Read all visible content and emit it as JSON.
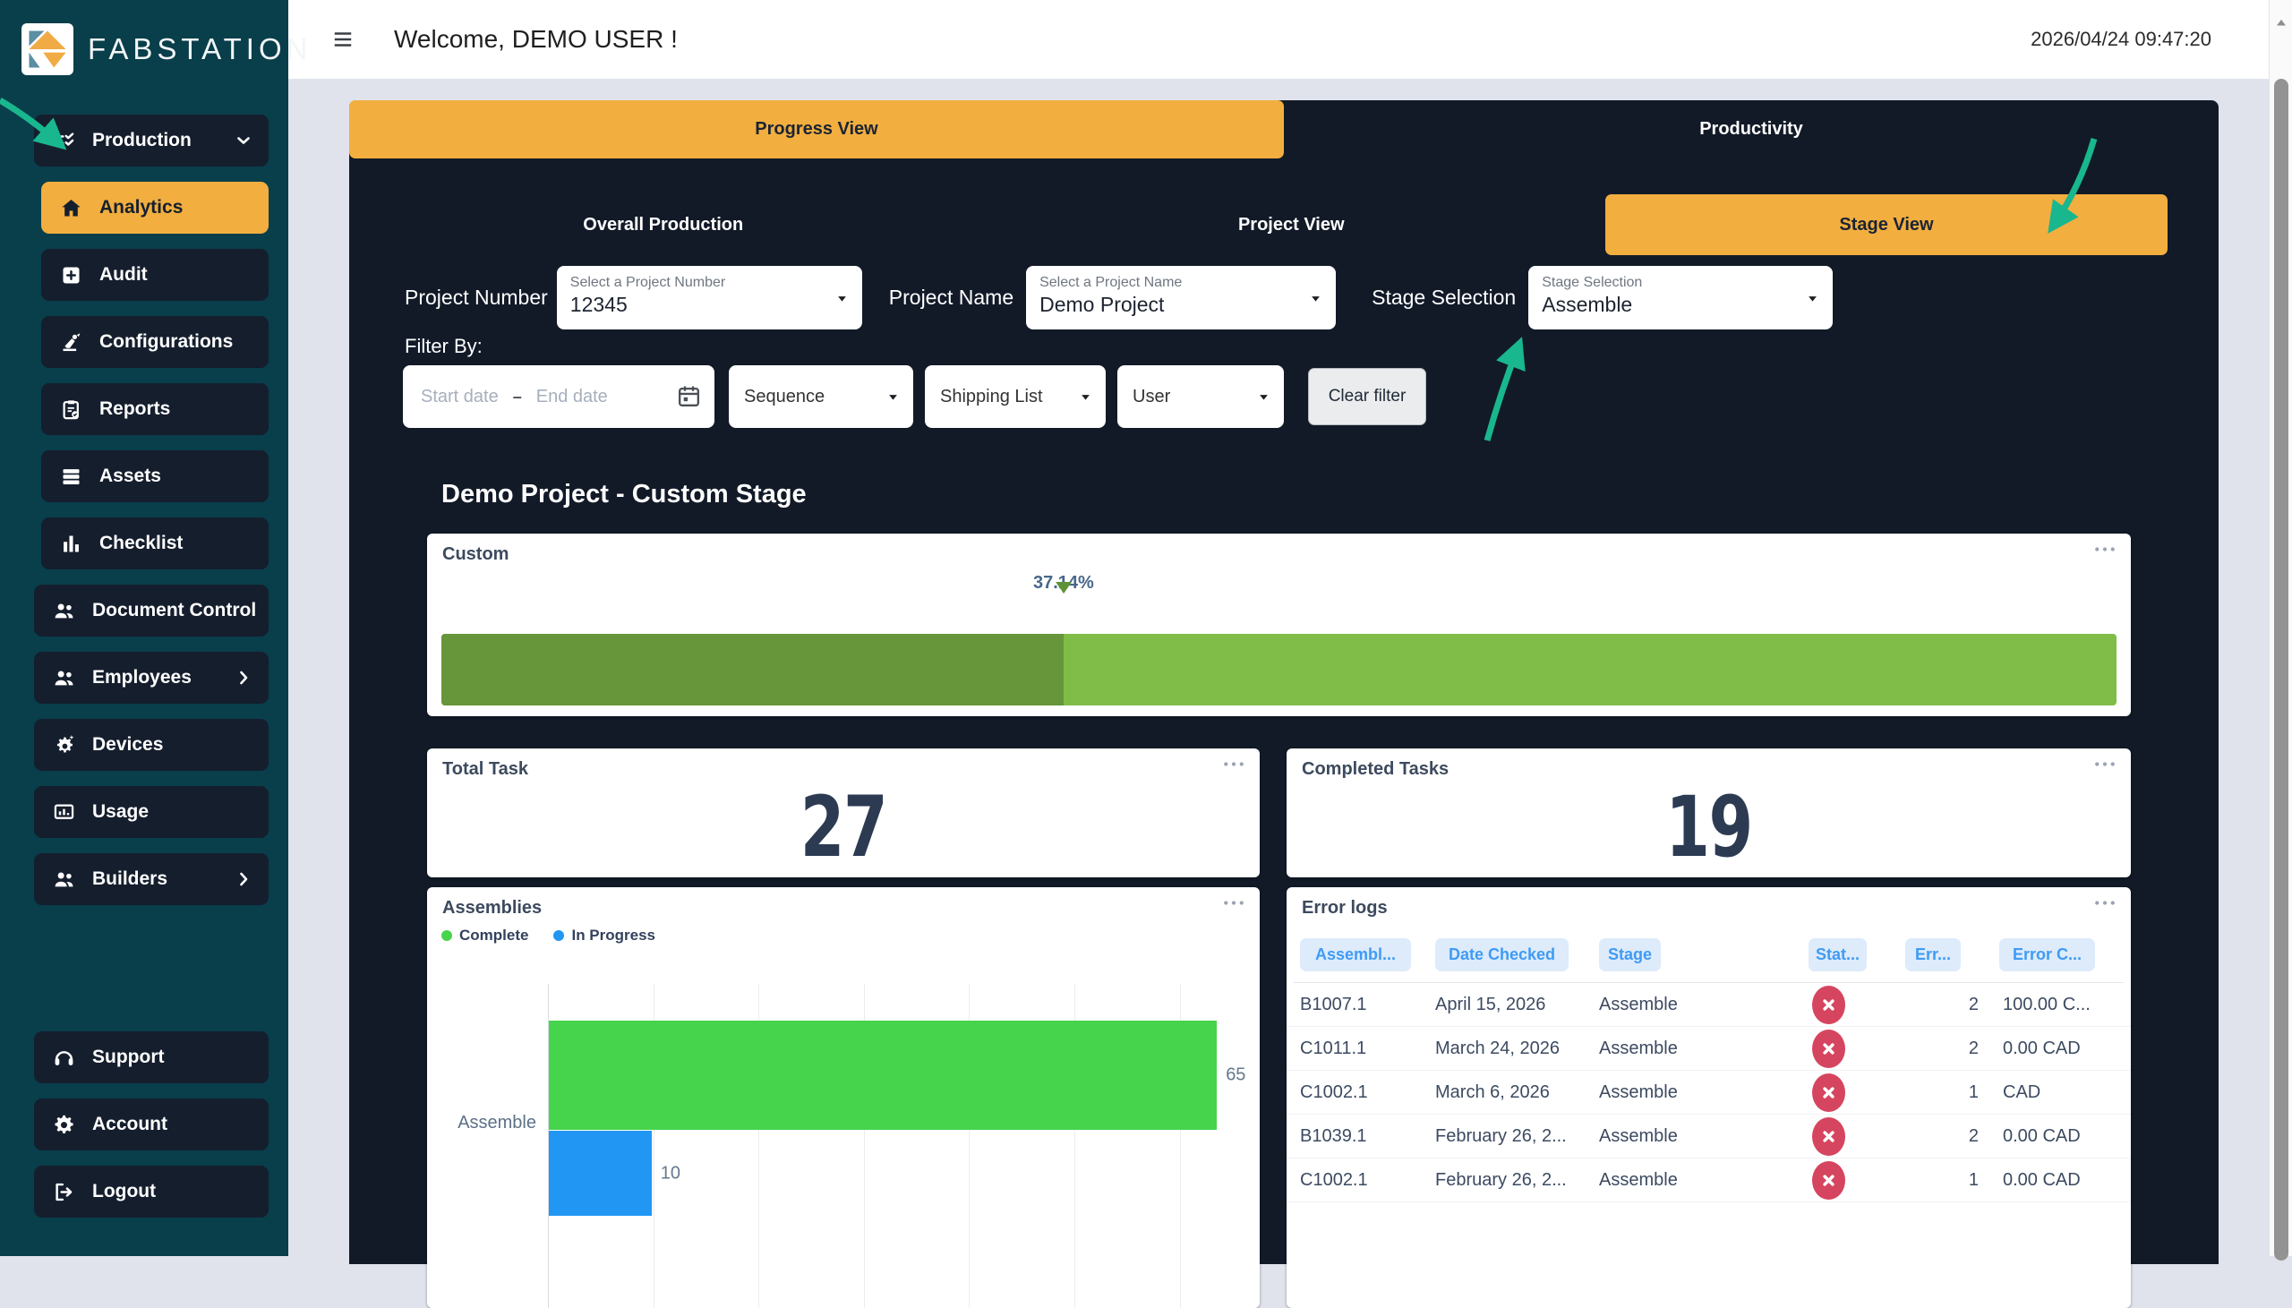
{
  "brand": {
    "name": "FABSTATION",
    "logo_icon": "fabstation-logo-icon"
  },
  "header": {
    "welcome": "Welcome, DEMO USER !",
    "timestamp": "2026/04/24 09:47:20",
    "menu_icon": "hamburger-icon"
  },
  "sidebar": {
    "items": [
      {
        "label": "Production",
        "icon": "list-check-icon",
        "chevron": "chevron-down-icon",
        "classes": "group"
      },
      {
        "label": "Analytics",
        "icon": "home-icon",
        "chevron": "",
        "classes": "sub active"
      },
      {
        "label": "Audit",
        "icon": "plus-square-icon",
        "chevron": "",
        "classes": "sub"
      },
      {
        "label": "Configurations",
        "icon": "robot-arm-icon",
        "chevron": "",
        "classes": "sub"
      },
      {
        "label": "Reports",
        "icon": "clipboard-check-icon",
        "chevron": "",
        "classes": "sub"
      },
      {
        "label": "Assets",
        "icon": "rows-icon",
        "chevron": "",
        "classes": "sub"
      },
      {
        "label": "Checklist",
        "icon": "bar-chart-icon",
        "chevron": "",
        "classes": "sub"
      },
      {
        "label": "Document Control",
        "icon": "people-icon",
        "chevron": "chevron-right-icon",
        "classes": "group"
      },
      {
        "label": "Employees",
        "icon": "people-icon",
        "chevron": "chevron-right-icon",
        "classes": "group"
      },
      {
        "label": "Devices",
        "icon": "gear-sparkle-icon",
        "chevron": "",
        "classes": "group"
      },
      {
        "label": "Usage",
        "icon": "monitor-chart-icon",
        "chevron": "",
        "classes": "group"
      },
      {
        "label": "Builders",
        "icon": "people-icon",
        "chevron": "chevron-right-icon",
        "classes": "group"
      }
    ],
    "footer_items": [
      {
        "label": "Support",
        "icon": "headset-icon",
        "chevron": "",
        "classes": "group"
      },
      {
        "label": "Account",
        "icon": "gear-icon",
        "chevron": "",
        "classes": "group"
      },
      {
        "label": "Logout",
        "icon": "logout-icon",
        "chevron": "",
        "classes": "group"
      }
    ]
  },
  "tabs": {
    "main": [
      {
        "label": "Progress View",
        "active": true
      },
      {
        "label": "Productivity",
        "active": false
      }
    ],
    "sub": [
      {
        "label": "Overall Production",
        "active": false
      },
      {
        "label": "Project View",
        "active": false
      },
      {
        "label": "Stage View",
        "active": true
      }
    ]
  },
  "filters": {
    "project_number": {
      "label": "Project Number",
      "placeholder": "Select a Project Number",
      "value": "12345"
    },
    "project_name": {
      "label": "Project Name",
      "placeholder": "Select a Project Name",
      "value": "Demo Project"
    },
    "stage_selection": {
      "label": "Stage Selection",
      "inner_label": "Stage Selection",
      "value": "Assemble"
    },
    "filter_by_label": "Filter By:",
    "start_date_placeholder": "Start date",
    "end_date_placeholder": "End date",
    "date_range_separator": "–",
    "sequence_label": "Sequence",
    "shipping_list_label": "Shipping List",
    "user_label": "User",
    "clear_label": "Clear filter"
  },
  "page_heading": "Demo Project - Custom Stage",
  "cards": {
    "custom": {
      "title": "Custom",
      "progress_pct": 37.14,
      "progress_label": "37.14%"
    },
    "total_task": {
      "title": "Total Task",
      "value": "27"
    },
    "completed_tasks": {
      "title": "Completed Tasks",
      "value": "19"
    },
    "assemblies": {
      "title": "Assemblies",
      "legend": [
        {
          "label": "Complete",
          "color": "#46d44d"
        },
        {
          "label": "In Progress",
          "color": "#2196f3"
        }
      ],
      "category": "Assemble",
      "complete": 65,
      "in_progress": 10,
      "complete_label": "65",
      "in_progress_label": "10"
    },
    "error_logs": {
      "title": "Error logs",
      "columns": [
        {
          "label": "Assembl..."
        },
        {
          "label": "Date Checked"
        },
        {
          "label": "Stage"
        },
        {
          "label": "Stat..."
        },
        {
          "label": "Err..."
        },
        {
          "label": "Error C..."
        }
      ],
      "rows": [
        {
          "assembly": "B1007.1",
          "date": "April 15, 2026",
          "stage": "Assemble",
          "status_icon": "x-circle-icon",
          "errors": "2",
          "cost": "100.00 C..."
        },
        {
          "assembly": "C1011.1",
          "date": "March 24, 2026",
          "stage": "Assemble",
          "status_icon": "x-circle-icon",
          "errors": "2",
          "cost": "0.00 CAD"
        },
        {
          "assembly": "C1002.1",
          "date": "March 6, 2026",
          "stage": "Assemble",
          "status_icon": "x-circle-icon",
          "errors": "1",
          "cost": "CAD"
        },
        {
          "assembly": "B1039.1",
          "date": "February 26, 2...",
          "stage": "Assemble",
          "status_icon": "x-circle-icon",
          "errors": "2",
          "cost": "0.00 CAD"
        },
        {
          "assembly": "C1002.1",
          "date": "February 26, 2...",
          "stage": "Assemble",
          "status_icon": "x-circle-icon",
          "errors": "1",
          "cost": "0.00 CAD"
        }
      ]
    }
  },
  "chart_data": {
    "type": "bar",
    "orientation": "horizontal",
    "title": "Assemblies",
    "categories": [
      "Assemble"
    ],
    "series": [
      {
        "name": "Complete",
        "color": "#46d44d",
        "values": [
          65
        ]
      },
      {
        "name": "In Progress",
        "color": "#2196f3",
        "values": [
          10
        ]
      }
    ],
    "xlim": [
      0,
      70
    ],
    "gridlines": true,
    "legend_position": "top-left"
  },
  "colors": {
    "accent_orange": "#f2ae3f",
    "sidebar_teal": "#093e4b",
    "item_navy": "#151e2d",
    "panel_navy": "#121a28",
    "page_background": "#e0e3ec",
    "green_complete": "#46d44d",
    "blue_in_progress": "#2196f3",
    "progress_dark_green": "#66953a",
    "progress_light_green": "#80bc48",
    "error_red": "#d6455f",
    "table_header_blue": "#3f9bf4",
    "annotation_green": "#19b78e"
  },
  "annotations": {
    "arrow_color": "#19b78e",
    "arrows": [
      "points-to-analytics-item",
      "points-to-stage-view-tab",
      "points-to-stage-selection-dropdown"
    ]
  }
}
